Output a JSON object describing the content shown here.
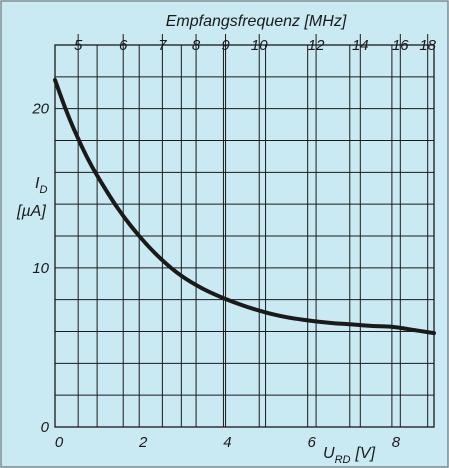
{
  "chart_data": {
    "type": "line",
    "title": "",
    "xlabel": "U",
    "xlabel_sub": "RD",
    "xlabel_unit": "[V]",
    "ylabel": "I",
    "ylabel_sub": "D",
    "ylabel_unit": "[µA]",
    "top_axis_label": "Empfangsfrequenz [MHz]",
    "xlim": [
      0,
      9
    ],
    "ylim": [
      0,
      24
    ],
    "x_ticks": [
      "0",
      "2",
      "4",
      "6",
      "8"
    ],
    "y_ticks": [
      "0",
      "10",
      "20"
    ],
    "top_axis_ticks": [
      {
        "label": "5",
        "u": 0.55
      },
      {
        "label": "6",
        "u": 1.62
      },
      {
        "label": "7",
        "u": 2.55
      },
      {
        "label": "8",
        "u": 3.35
      },
      {
        "label": "9",
        "u": 4.05
      },
      {
        "label": "10",
        "u": 4.85
      },
      {
        "label": "12",
        "u": 6.2
      },
      {
        "label": "14",
        "u": 7.25
      },
      {
        "label": "16",
        "u": 8.2
      },
      {
        "label": "18",
        "u": 8.85
      }
    ],
    "series": [
      {
        "x": [
          0,
          0.25,
          0.5,
          0.75,
          1,
          1.5,
          2,
          2.5,
          3,
          3.5,
          4,
          4.5,
          5,
          5.5,
          6,
          6.5,
          7,
          7.5,
          8,
          8.5,
          9
        ],
        "y": [
          21.8,
          20.0,
          18.4,
          17.0,
          15.8,
          13.7,
          12.0,
          10.6,
          9.5,
          8.7,
          8.1,
          7.6,
          7.2,
          6.9,
          6.7,
          6.55,
          6.45,
          6.35,
          6.3,
          6.1,
          5.9
        ]
      }
    ],
    "grid": true,
    "colors": {
      "background": "#c9e9f3",
      "grid": "#1a1a1a",
      "curve": "#1a1a1a",
      "text": "#1a1a1a",
      "frame": "#7a8a92"
    }
  }
}
